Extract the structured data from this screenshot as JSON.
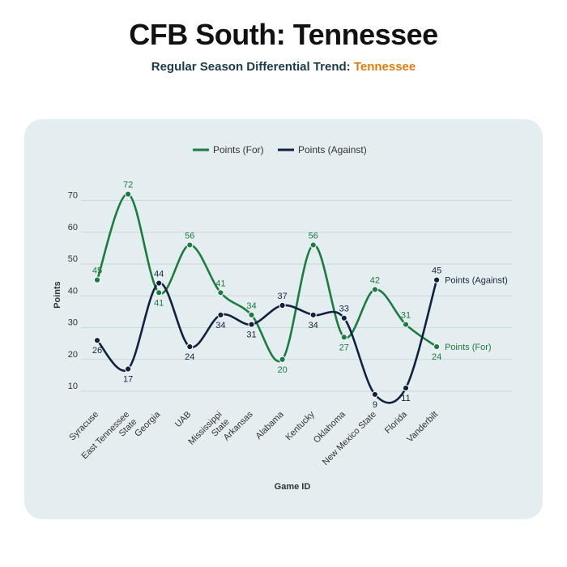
{
  "header": {
    "title": "CFB South: Tennessee",
    "subtitle_prefix": "Regular Season Differential Trend: ",
    "subtitle_team": "Tennessee"
  },
  "colors": {
    "for": "#1e7a43",
    "against": "#13213f",
    "accent": "#e07b12",
    "panel": "#e4edef"
  },
  "chart_data": {
    "type": "line",
    "categories": [
      "Syracuse",
      "East Tennessee State",
      "Georgia",
      "UAB",
      "Mississippi State",
      "Arkansas",
      "Alabama",
      "Kentucky",
      "Oklahoma",
      "New Mexico State",
      "Florida",
      "Vanderbilt"
    ],
    "series": [
      {
        "name": "Points (For)",
        "values": [
          45,
          72,
          41,
          56,
          41,
          34,
          20,
          56,
          27,
          42,
          31,
          24
        ],
        "end_label": "Points (For)"
      },
      {
        "name": "Points (Against)",
        "values": [
          26,
          17,
          44,
          24,
          34,
          31,
          37,
          34,
          33,
          9,
          11,
          45
        ],
        "end_label": "Points (Against)"
      }
    ],
    "xlabel": "Game ID",
    "ylabel": "Points",
    "yticks": [
      10,
      20,
      30,
      40,
      50,
      60,
      70
    ],
    "ylim": [
      5,
      75
    ],
    "grid": true,
    "legend": "top"
  }
}
